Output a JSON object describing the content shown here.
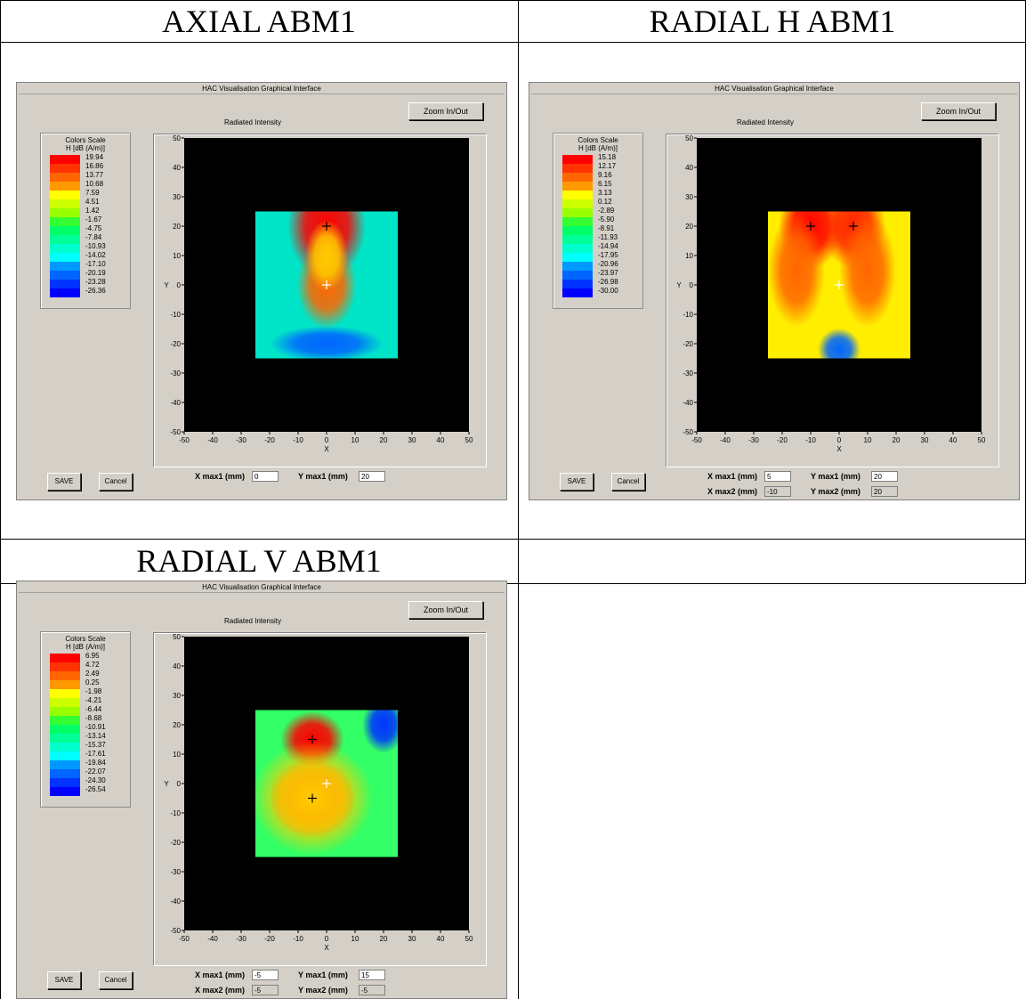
{
  "headers": {
    "axial": "AXIAL ABM1",
    "radial_h": "RADIAL H ABM1",
    "radial_v": "RADIAL V ABM1"
  },
  "window_title": "HAC Visualisation Graphical Interface",
  "zoom_label": "Zoom In/Out",
  "plot_title": "Radiated Intensity",
  "scale_title": "Colors Scale",
  "scale_unit": "H [dB (A/m)]",
  "save_label": "SAVE",
  "cancel_label": "Cancel",
  "x_axis_label": "X",
  "y_axis_label": "Y",
  "tick_labels": [
    "-50",
    "-40",
    "-30",
    "-20",
    "-10",
    "0",
    "10",
    "20",
    "30",
    "40",
    "50"
  ],
  "colors": [
    "#ff0000",
    "#ff3300",
    "#ff6600",
    "#ff9900",
    "#ffcc00",
    "#ffff00",
    "#ccff00",
    "#99ff00",
    "#33ff33",
    "#00ff66",
    "#00ff99",
    "#00ffcc",
    "#00ffff",
    "#00ccff",
    "#0099ff",
    "#0066ff",
    "#0033ff",
    "#0000ff"
  ],
  "panels": [
    {
      "id": "axial",
      "scale_values": [
        "19.94",
        "16.86",
        "13.77",
        "10.68",
        "7.59",
        "4.51",
        "1.42",
        "-1.67",
        "-4.75",
        "-7.84",
        "-10.93",
        "-14.02",
        "-17.10",
        "-20.19",
        "-23.28",
        "-26.36"
      ],
      "fields": [
        {
          "label": "X max1 (mm)",
          "value": "0"
        },
        {
          "label": "Y max1 (mm)",
          "value": "20"
        }
      ],
      "markers": [
        {
          "x": 0,
          "y": 20,
          "color": "#000000"
        },
        {
          "x": 0,
          "y": 0,
          "color": "#ffffff"
        }
      ]
    },
    {
      "id": "radial_h",
      "scale_values": [
        "15.18",
        "12.17",
        "9.16",
        "6.15",
        "3.13",
        "0.12",
        "-2.89",
        "-5.90",
        "-8.91",
        "-11.93",
        "-14.94",
        "-17.95",
        "-20.96",
        "-23.97",
        "-26.98",
        "-30.00"
      ],
      "fields": [
        {
          "label": "X max1 (mm)",
          "value": "5"
        },
        {
          "label": "Y max1 (mm)",
          "value": "20"
        },
        {
          "label": "X max2 (mm)",
          "value": "-10"
        },
        {
          "label": "Y max2 (mm)",
          "value": "20"
        }
      ],
      "markers": [
        {
          "x": -10,
          "y": 20,
          "color": "#000000"
        },
        {
          "x": 5,
          "y": 20,
          "color": "#000000"
        },
        {
          "x": 0,
          "y": 0,
          "color": "#ffffff"
        }
      ]
    },
    {
      "id": "radial_v",
      "scale_values": [
        "6.95",
        "4.72",
        "2.49",
        "0.25",
        "-1.98",
        "-4.21",
        "-6.44",
        "-8.68",
        "-10.91",
        "-13.14",
        "-15.37",
        "-17.61",
        "-19.84",
        "-22.07",
        "-24.30",
        "-26.54"
      ],
      "fields": [
        {
          "label": "X max1 (mm)",
          "value": "-5"
        },
        {
          "label": "Y max1 (mm)",
          "value": "15"
        },
        {
          "label": "X max2 (mm)",
          "value": "-5"
        },
        {
          "label": "Y max2 (mm)",
          "value": "-5"
        }
      ],
      "markers": [
        {
          "x": -5,
          "y": 15,
          "color": "#000000"
        },
        {
          "x": -5,
          "y": -5,
          "color": "#000000"
        },
        {
          "x": 0,
          "y": 0,
          "color": "#ffffff"
        }
      ]
    }
  ]
}
